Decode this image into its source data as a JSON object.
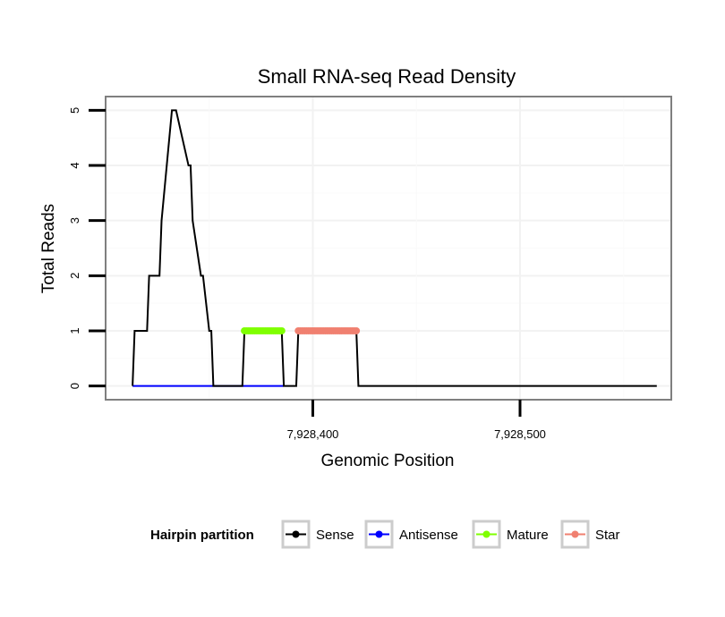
{
  "chart_data": {
    "type": "line",
    "title": "Small RNA-seq Read Density",
    "xlabel": "Genomic Position",
    "ylabel": "Total Reads",
    "xlim": [
      7928300,
      7928573
    ],
    "ylim": [
      -0.25,
      5.25
    ],
    "x_ticks": [
      7928400,
      7928500
    ],
    "x_tick_labels": [
      "7,928,400",
      "7,928,500"
    ],
    "y_ticks": [
      0,
      1,
      2,
      3,
      4,
      5
    ],
    "y_tick_labels": [
      "0",
      "1",
      "2",
      "3",
      "4",
      "5"
    ],
    "legend": {
      "title": "Hairpin partition",
      "position": "bottom",
      "entries": [
        "Sense",
        "Antisense",
        "Mature",
        "Star"
      ]
    },
    "series": [
      {
        "name": "Sense",
        "color": "#000000",
        "x": [
          7928313,
          7928314,
          7928320,
          7928321,
          7928326,
          7928327,
          7928332,
          7928333,
          7928334,
          7928340,
          7928341,
          7928342,
          7928346,
          7928347,
          7928350,
          7928351,
          7928352,
          7928366,
          7928367,
          7928385,
          7928386,
          7928392,
          7928393,
          7928421,
          7928422,
          7928566
        ],
        "y": [
          0,
          1,
          1,
          2,
          2,
          3,
          5,
          5,
          5,
          4,
          4,
          3,
          2,
          2,
          1,
          1,
          0,
          0,
          1,
          1,
          0,
          0,
          1,
          1,
          0,
          0
        ]
      },
      {
        "name": "Antisense",
        "color": "#0000ff",
        "x": [
          7928313,
          7928386
        ],
        "y": [
          0,
          0
        ]
      },
      {
        "name": "Mature",
        "color": "#7fff00",
        "x": [
          7928367,
          7928368,
          7928369,
          7928370,
          7928371,
          7928372,
          7928373,
          7928374,
          7928375,
          7928376,
          7928377,
          7928378,
          7928379,
          7928380,
          7928381,
          7928382,
          7928383,
          7928384,
          7928385
        ],
        "y": [
          1,
          1,
          1,
          1,
          1,
          1,
          1,
          1,
          1,
          1,
          1,
          1,
          1,
          1,
          1,
          1,
          1,
          1,
          1
        ]
      },
      {
        "name": "Star",
        "color": "#f08070",
        "x": [
          7928393,
          7928394,
          7928395,
          7928396,
          7928397,
          7928398,
          7928399,
          7928400,
          7928401,
          7928402,
          7928403,
          7928404,
          7928405,
          7928406,
          7928407,
          7928408,
          7928409,
          7928410,
          7928411,
          7928412,
          7928413,
          7928414,
          7928415,
          7928416,
          7928417,
          7928418,
          7928419,
          7928420,
          7928421
        ],
        "y": [
          1,
          1,
          1,
          1,
          1,
          1,
          1,
          1,
          1,
          1,
          1,
          1,
          1,
          1,
          1,
          1,
          1,
          1,
          1,
          1,
          1,
          1,
          1,
          1,
          1,
          1,
          1,
          1,
          1
        ]
      }
    ]
  }
}
